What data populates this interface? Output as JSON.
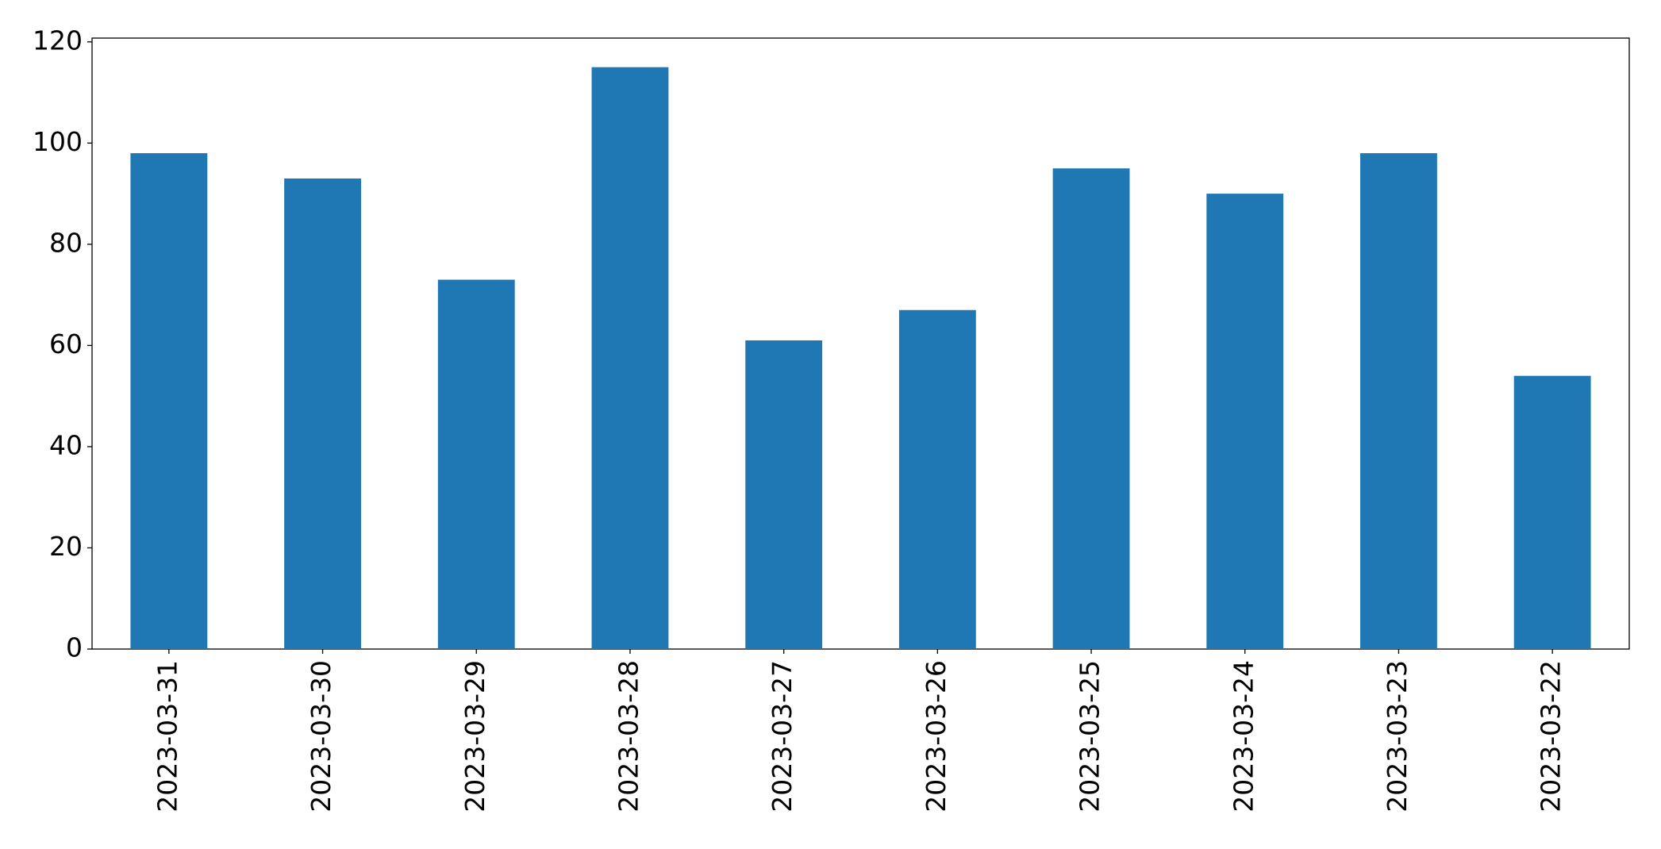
{
  "chart_data": {
    "type": "bar",
    "categories": [
      "2023-03-31",
      "2023-03-30",
      "2023-03-29",
      "2023-03-28",
      "2023-03-27",
      "2023-03-26",
      "2023-03-25",
      "2023-03-24",
      "2023-03-23",
      "2023-03-22"
    ],
    "values": [
      98,
      93,
      73,
      115,
      61,
      67,
      95,
      90,
      98,
      54
    ],
    "color": "#1f77b4",
    "ylim": [
      0,
      120.75
    ],
    "yticks": [
      0,
      20,
      40,
      60,
      80,
      100,
      120
    ],
    "grid": false
  }
}
